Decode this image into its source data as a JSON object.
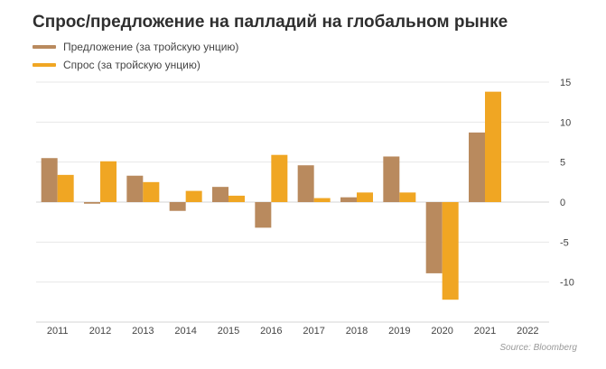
{
  "chart_data": {
    "type": "bar",
    "title": "Спрос/предложение на палладий на глобальном рынке",
    "categories": [
      "2011",
      "2012",
      "2013",
      "2014",
      "2015",
      "2016",
      "2017",
      "2018",
      "2019",
      "2020",
      "2021",
      "2022"
    ],
    "series": [
      {
        "name": "Предложение (за тройскую унцию)",
        "color": "#b98a5e",
        "values": [
          5.5,
          -0.2,
          3.3,
          -1.1,
          1.9,
          -3.2,
          4.6,
          0.6,
          5.7,
          -8.9,
          8.7,
          null
        ]
      },
      {
        "name": "Спрос (за тройскую унцию)",
        "color": "#f0a623",
        "values": [
          3.4,
          5.1,
          2.5,
          1.4,
          0.8,
          5.9,
          0.5,
          1.2,
          1.2,
          -12.2,
          13.8,
          null
        ]
      }
    ],
    "yticks": [
      "15",
      "10",
      "5",
      "0",
      "-5",
      "-10"
    ],
    "ytick_values": [
      15,
      10,
      5,
      0,
      -5,
      -10
    ],
    "ylim": [
      -15,
      15
    ],
    "y_axis_side": "right",
    "grid": true,
    "legend_position": "top-left",
    "xlabel": "",
    "ylabel": ""
  },
  "source": "Source: Bloomberg"
}
